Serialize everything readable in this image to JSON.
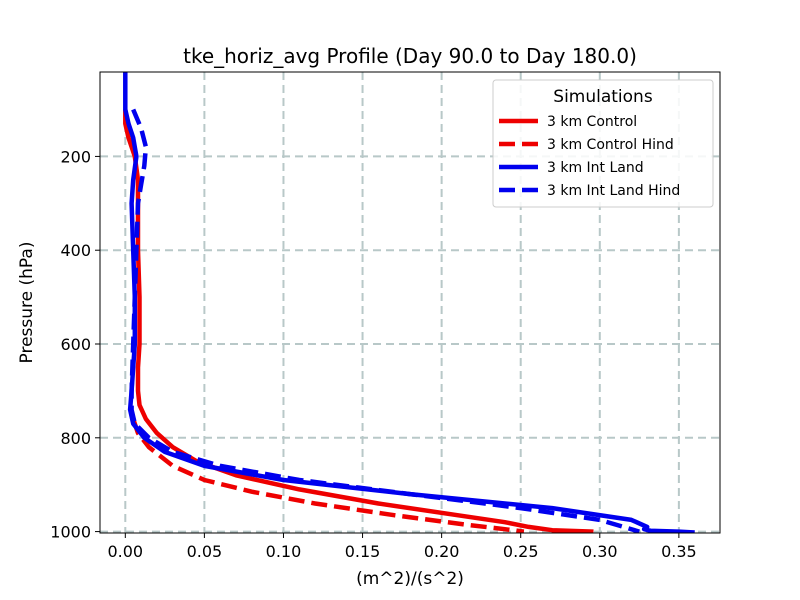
{
  "chart_data": {
    "type": "line",
    "title": "tke_horiz_avg Profile (Day 90.0 to Day 180.0)",
    "xlabel": "(m^2)/(s^2)",
    "ylabel": "Pressure (hPa)",
    "xlim": [
      -0.016,
      0.376
    ],
    "ylim": [
      1003,
      20
    ],
    "y_inverted": true,
    "grid": true,
    "xticks": [
      0.0,
      0.05,
      0.1,
      0.15,
      0.2,
      0.25,
      0.3,
      0.35
    ],
    "xtick_labels": [
      "0.00",
      "0.05",
      "0.10",
      "0.15",
      "0.20",
      "0.25",
      "0.30",
      "0.35"
    ],
    "yticks": [
      200,
      400,
      600,
      800,
      1000
    ],
    "ytick_labels": [
      "200",
      "400",
      "600",
      "800",
      "1000"
    ],
    "legend": {
      "title": "Simulations",
      "placement": "top-right"
    },
    "series": [
      {
        "name": "3 km Control",
        "color": "#ee0000",
        "dash": "solid",
        "x": [
          0.0,
          0.0,
          0.002,
          0.006,
          0.008,
          0.008,
          0.008,
          0.009,
          0.009,
          0.008,
          0.008,
          0.009,
          0.013,
          0.02,
          0.03,
          0.045,
          0.07,
          0.11,
          0.16,
          0.21,
          0.24,
          0.255,
          0.27,
          0.296
        ],
        "y": [
          100,
          130,
          160,
          200,
          250,
          300,
          400,
          500,
          600,
          650,
          700,
          730,
          760,
          790,
          820,
          850,
          880,
          910,
          940,
          965,
          980,
          990,
          997,
          1000
        ]
      },
      {
        "name": "3 km Control Hind",
        "color": "#ee0000",
        "dash": "dashed",
        "x": [
          0.005,
          0.008,
          0.015,
          0.03,
          0.05,
          0.08,
          0.12,
          0.17,
          0.215,
          0.24,
          0.252
        ],
        "y": [
          760,
          790,
          820,
          860,
          890,
          915,
          940,
          965,
          985,
          995,
          1000
        ]
      },
      {
        "name": "3 km Int Land",
        "color": "#0000ee",
        "dash": "solid",
        "x": [
          0.0,
          0.0,
          0.0,
          0.002,
          0.005,
          0.007,
          0.005,
          0.004,
          0.005,
          0.006,
          0.006,
          0.004,
          0.003,
          0.005,
          0.012,
          0.025,
          0.05,
          0.1,
          0.18,
          0.27,
          0.32,
          0.33,
          0.328,
          0.332,
          0.35,
          0.36
        ],
        "y": [
          20,
          60,
          100,
          130,
          160,
          200,
          250,
          300,
          400,
          500,
          600,
          700,
          740,
          770,
          800,
          830,
          860,
          890,
          920,
          950,
          975,
          990,
          995,
          998,
          1000,
          1002
        ]
      },
      {
        "name": "3 km Int Land Hind",
        "color": "#0000ee",
        "dash": "dashed",
        "x": [
          0.005,
          0.01,
          0.013,
          0.012,
          0.01,
          0.008,
          0.007,
          0.006,
          0.005,
          0.004,
          0.004,
          0.006,
          0.015,
          0.03,
          0.06,
          0.11,
          0.18,
          0.25,
          0.3,
          0.315,
          0.325
        ],
        "y": [
          100,
          140,
          180,
          220,
          260,
          300,
          400,
          500,
          600,
          700,
          740,
          770,
          800,
          830,
          860,
          890,
          920,
          950,
          975,
          990,
          1000
        ]
      }
    ]
  }
}
